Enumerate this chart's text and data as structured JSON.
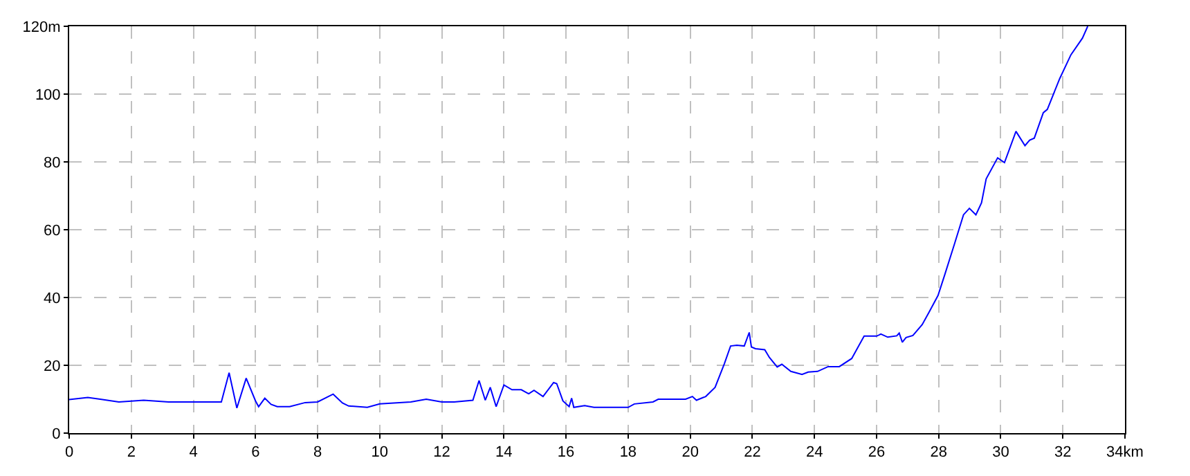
{
  "chart_data": {
    "type": "line",
    "xlim": [
      0,
      34
    ],
    "ylim": [
      0,
      120
    ],
    "xticks": [
      0,
      2,
      4,
      6,
      8,
      10,
      12,
      14,
      16,
      18,
      20,
      22,
      24,
      26,
      28,
      30,
      32,
      {
        "value": 34,
        "label": "34km"
      }
    ],
    "yticks": [
      0,
      20,
      40,
      60,
      80,
      100,
      {
        "value": 120,
        "label": "120m"
      }
    ],
    "grid": true,
    "line_style": "solid",
    "marker": "none",
    "series": [
      {
        "color": "#0000ff",
        "x": [
          0,
          0.6,
          1.0,
          1.6,
          2.4,
          3.2,
          4.9,
          5.15,
          5.4,
          5.7,
          6.0,
          6.1,
          6.3,
          6.5,
          6.7,
          7.1,
          7.6,
          8.0,
          8.5,
          8.8,
          9.0,
          9.6,
          10.0,
          11.0,
          11.5,
          12.0,
          12.4,
          13.0,
          13.2,
          13.4,
          13.56,
          13.75,
          14.0,
          14.26,
          14.56,
          14.8,
          14.97,
          15.26,
          15.6,
          15.7,
          15.9,
          16.1,
          16.18,
          16.25,
          16.6,
          16.9,
          18.0,
          18.2,
          18.8,
          18.97,
          19.85,
          20.07,
          20.2,
          20.5,
          20.8,
          21.1,
          21.3,
          21.5,
          21.74,
          21.9,
          21.97,
          22.1,
          22.4,
          22.55,
          22.8,
          22.95,
          23.24,
          23.6,
          23.8,
          24.1,
          24.44,
          24.8,
          25.2,
          25.6,
          26.0,
          26.14,
          26.36,
          26.65,
          26.73,
          26.83,
          26.95,
          27.17,
          27.47,
          27.7,
          27.98,
          28.2,
          28.5,
          28.8,
          28.99,
          29.2,
          29.38,
          29.53,
          29.9,
          30.12,
          30.49,
          30.78,
          30.93,
          31.08,
          31.37,
          31.5,
          31.9,
          32.26,
          32.63,
          32.8
        ],
        "values": [
          9.9,
          10.5,
          10,
          9.2,
          9.7,
          9.2,
          9.2,
          17.8,
          7.4,
          16.2,
          9.5,
          7.8,
          10.3,
          8.5,
          7.8,
          7.8,
          9,
          9.2,
          11.5,
          8.9,
          8,
          7.6,
          8.6,
          9.2,
          10,
          9.2,
          9.2,
          9.7,
          15.5,
          9.7,
          13.5,
          7.8,
          14.2,
          12.8,
          12.8,
          11.6,
          12.6,
          10.8,
          14.9,
          14.6,
          9.5,
          7.8,
          10.3,
          7.6,
          8.1,
          7.6,
          7.6,
          8.6,
          9.2,
          10,
          10,
          10.8,
          9.7,
          10.8,
          13.5,
          20.5,
          25.7,
          25.9,
          25.7,
          29.7,
          25.4,
          24.9,
          24.6,
          22.3,
          19.5,
          20.3,
          18.2,
          17.3,
          18,
          18.2,
          19.6,
          19.6,
          22,
          28.6,
          28.6,
          29.2,
          28.3,
          28.7,
          29.5,
          26.8,
          28.2,
          28.8,
          32,
          35.8,
          40.6,
          46.8,
          55.5,
          64.4,
          66.3,
          64.4,
          67.9,
          75,
          81.2,
          79.8,
          89,
          84.8,
          86.4,
          87,
          94.5,
          95.5,
          104.6,
          111.6,
          116.5,
          120
        ]
      }
    ]
  }
}
